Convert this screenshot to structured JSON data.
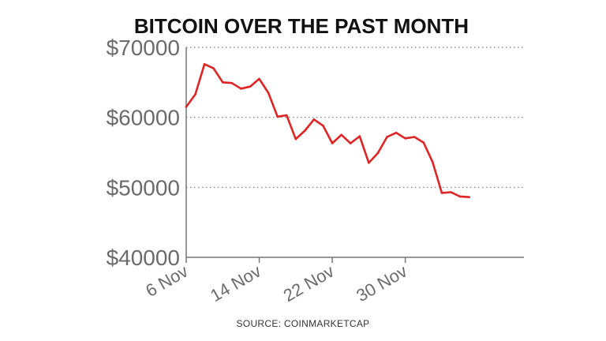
{
  "chart_data": {
    "type": "line",
    "title": "BITCOIN OVER THE PAST MONTH",
    "source": "SOURCE: COINMARKETCAP",
    "xlabel": "",
    "ylabel": "",
    "ylim": [
      40000,
      70000
    ],
    "yticks": [
      {
        "value": 70000,
        "label": "$70000"
      },
      {
        "value": 60000,
        "label": "$60000"
      },
      {
        "value": 50000,
        "label": "$50000"
      },
      {
        "value": 40000,
        "label": "$40000"
      }
    ],
    "xlim": [
      6,
      43
    ],
    "xticks": [
      {
        "value": 6,
        "label": "6 Nov"
      },
      {
        "value": 14,
        "label": "14 Nov"
      },
      {
        "value": 22,
        "label": "22 Nov"
      },
      {
        "value": 30,
        "label": "30 Nov"
      }
    ],
    "grid": true,
    "line_color": "#e02424",
    "series": [
      {
        "x": [
          6,
          7,
          8,
          9,
          10,
          11,
          12,
          13,
          14,
          15,
          16,
          17,
          18,
          19,
          20,
          21,
          22,
          23,
          24,
          25,
          26,
          27,
          28,
          29,
          30,
          31,
          32,
          33,
          34,
          35,
          36,
          37
        ],
        "values": [
          61500,
          63300,
          67600,
          67000,
          65000,
          64900,
          64100,
          64400,
          65500,
          63500,
          60100,
          60300,
          56900,
          58100,
          59700,
          58800,
          56300,
          57500,
          56300,
          57300,
          53500,
          54900,
          57200,
          57800,
          57000,
          57200,
          56400,
          53600,
          49200,
          49300,
          48700,
          48600
        ]
      }
    ]
  }
}
